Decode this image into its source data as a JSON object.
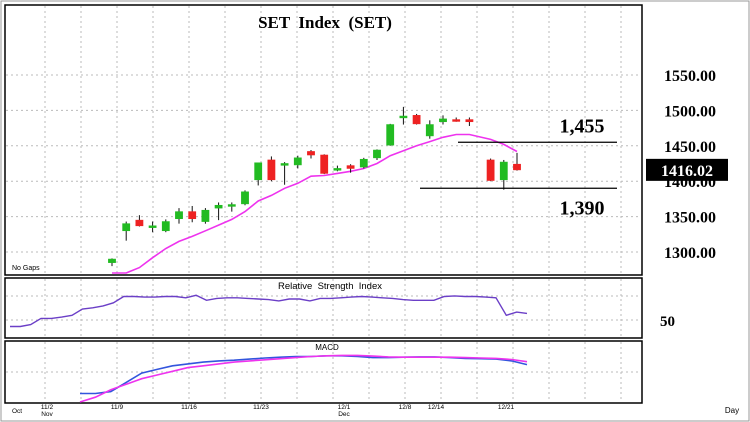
{
  "chart_data": [
    {
      "type": "candlestick",
      "title": "SET  Index  (SET)",
      "corner_note": "No Gaps",
      "price_label": "1416.02",
      "colors": {
        "up": "#22bb22",
        "down": "#ee2222",
        "ma": "#ee33ee",
        "frame": "#000000"
      },
      "ylim": [
        1275,
        1575
      ],
      "yticks": [
        1300.0,
        1350.0,
        1400.0,
        1450.0,
        1500.0,
        1550.0
      ],
      "ytick_labels": [
        "1300.00",
        "1350.00",
        "1400.00",
        "1450.00",
        "1500.00",
        "1550.00"
      ],
      "candles": [
        {
          "o": 1285,
          "h": 1291,
          "l": 1280,
          "c": 1290
        },
        {
          "o": 1330,
          "h": 1343,
          "l": 1316,
          "c": 1340
        },
        {
          "o": 1345,
          "h": 1352,
          "l": 1336,
          "c": 1337
        },
        {
          "o": 1337,
          "h": 1343,
          "l": 1328,
          "c": 1337
        },
        {
          "o": 1330,
          "h": 1346,
          "l": 1328,
          "c": 1343
        },
        {
          "o": 1347,
          "h": 1362,
          "l": 1340,
          "c": 1357
        },
        {
          "o": 1357,
          "h": 1365,
          "l": 1342,
          "c": 1347
        },
        {
          "o": 1343,
          "h": 1362,
          "l": 1340,
          "c": 1359
        },
        {
          "o": 1362,
          "h": 1370,
          "l": 1345,
          "c": 1366
        },
        {
          "o": 1367,
          "h": 1370,
          "l": 1357,
          "c": 1367
        },
        {
          "o": 1368,
          "h": 1387,
          "l": 1366,
          "c": 1385
        },
        {
          "o": 1402,
          "h": 1426,
          "l": 1394,
          "c": 1426
        },
        {
          "o": 1430,
          "h": 1435,
          "l": 1400,
          "c": 1402
        },
        {
          "o": 1425,
          "h": 1427,
          "l": 1395,
          "c": 1425
        },
        {
          "o": 1423,
          "h": 1436,
          "l": 1418,
          "c": 1433
        },
        {
          "o": 1442,
          "h": 1444,
          "l": 1432,
          "c": 1437
        },
        {
          "o": 1437,
          "h": 1438,
          "l": 1410,
          "c": 1411
        },
        {
          "o": 1418,
          "h": 1422,
          "l": 1414,
          "c": 1418
        },
        {
          "o": 1422,
          "h": 1424,
          "l": 1412,
          "c": 1418
        },
        {
          "o": 1420,
          "h": 1433,
          "l": 1418,
          "c": 1431
        },
        {
          "o": 1433,
          "h": 1445,
          "l": 1430,
          "c": 1444
        },
        {
          "o": 1451,
          "h": 1481,
          "l": 1450,
          "c": 1480
        },
        {
          "o": 1491,
          "h": 1505,
          "l": 1480,
          "c": 1492
        },
        {
          "o": 1493,
          "h": 1495,
          "l": 1480,
          "c": 1481
        },
        {
          "o": 1464,
          "h": 1486,
          "l": 1460,
          "c": 1480
        },
        {
          "o": 1484,
          "h": 1493,
          "l": 1480,
          "c": 1488
        },
        {
          "o": 1487,
          "h": 1490,
          "l": 1484,
          "c": 1486
        },
        {
          "o": 1487,
          "h": 1490,
          "l": 1478,
          "c": 1484
        },
        {
          "o": 1430,
          "h": 1432,
          "l": 1400,
          "c": 1401
        },
        {
          "o": 1402,
          "h": 1430,
          "l": 1388,
          "c": 1427
        },
        {
          "o": 1424,
          "h": 1440,
          "l": 1415,
          "c": 1416
        }
      ],
      "ma": [
        1240,
        1260,
        1278,
        1292,
        1305,
        1315,
        1322,
        1330,
        1338,
        1346,
        1357,
        1372,
        1380,
        1390,
        1397,
        1407,
        1408,
        1411,
        1414,
        1418,
        1425,
        1436,
        1443,
        1450,
        1456,
        1462,
        1466,
        1466,
        1459,
        1452,
        1442
      ],
      "annotations": [
        {
          "text": "1,455",
          "value": 1455
        },
        {
          "text": "1,390",
          "value": 1390
        }
      ]
    },
    {
      "type": "line",
      "title": "Relative  Strength  Index",
      "ylim": [
        20,
        100
      ],
      "ytick_labels": [
        "50"
      ],
      "color": "#6b3fc7",
      "values": [
        32,
        32,
        35,
        45,
        45,
        47,
        50,
        60,
        62,
        65,
        70,
        80,
        80,
        79,
        79,
        80,
        80,
        78,
        82,
        74,
        77,
        78,
        78,
        77,
        76,
        75,
        73,
        76,
        76,
        73,
        77,
        77,
        78,
        79,
        80,
        79,
        78,
        77,
        75,
        74,
        74,
        74,
        80,
        81,
        80,
        80,
        79,
        78,
        50,
        55,
        53
      ]
    },
    {
      "type": "line",
      "title": "MACD",
      "series": [
        {
          "color": "#3355dd",
          "values": [
            -50,
            -50,
            -45,
            -20,
            5,
            15,
            25,
            30,
            35,
            38,
            40,
            43,
            46,
            48,
            50,
            50,
            52,
            52,
            50,
            47,
            47,
            48,
            49,
            49,
            47,
            45,
            44,
            43,
            38,
            28
          ]
        },
        {
          "color": "#ee33ee",
          "values": [
            -80,
            -60,
            -40,
            -25,
            -10,
            0,
            10,
            20,
            25,
            30,
            35,
            38,
            41,
            44,
            47,
            50,
            52,
            53,
            53,
            51,
            49,
            48,
            48,
            48,
            48,
            47,
            46,
            45,
            42,
            36
          ]
        }
      ]
    }
  ],
  "x_axis": {
    "tick_labels": [
      "Oct",
      "11/2",
      "Nov",
      "11/9",
      "11/16",
      "11/23",
      "12/1",
      "Dec",
      "12/8",
      "12/14",
      "12/21"
    ],
    "unit_label": "Day"
  }
}
